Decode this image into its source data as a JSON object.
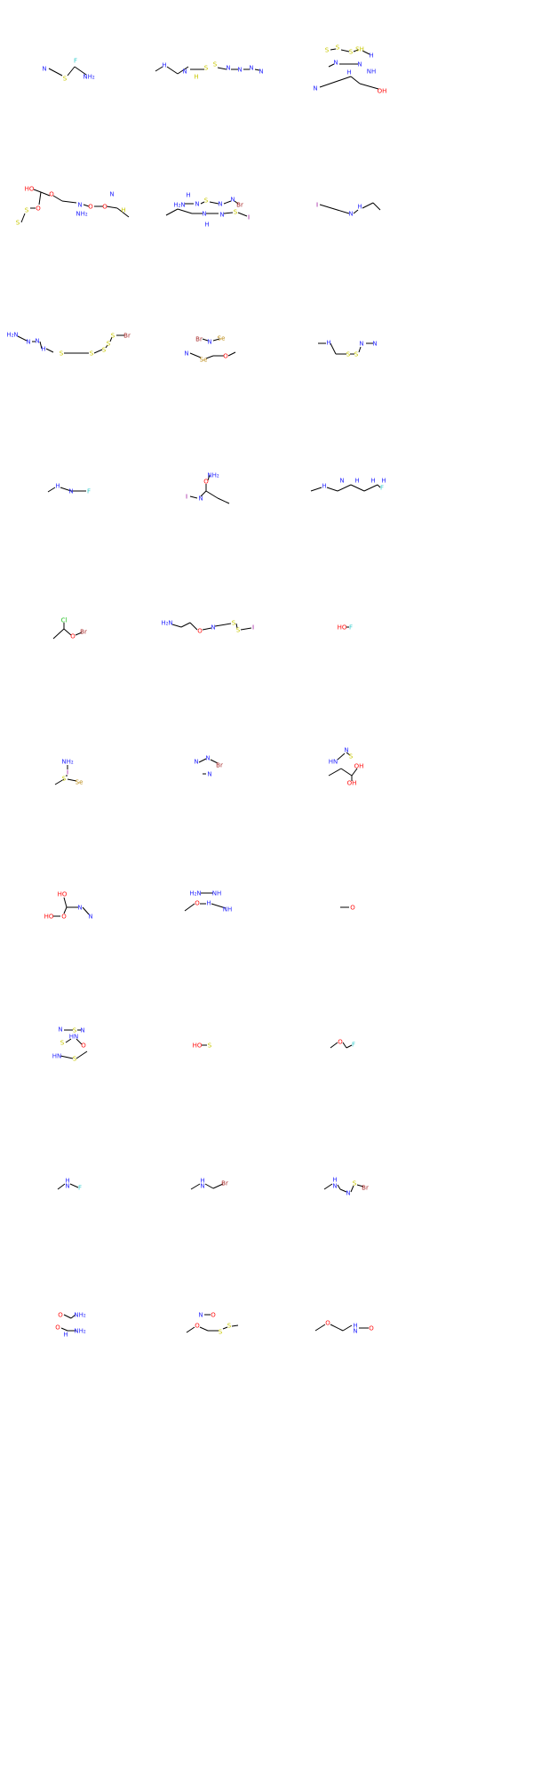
{
  "colors": {
    "bond": "#000000",
    "N": "#2a2aff",
    "O": "#ff0d0d",
    "S": "#c8c800",
    "F": "#33cccc",
    "Cl": "#1fc01f",
    "Br": "#a62929",
    "I": "#940094",
    "Se": "#b8860b",
    "highlight": "#ff8c00"
  },
  "molecules": [
    {
      "labels": [
        [
          "N",
          "N"
        ],
        [
          "S",
          "S"
        ],
        [
          "F",
          "F"
        ],
        [
          "NH₂",
          "N"
        ]
      ]
    },
    {
      "labels": [
        [
          "H",
          "N"
        ],
        [
          "N",
          "N"
        ],
        [
          "S",
          "S"
        ],
        [
          "S",
          "S"
        ],
        [
          "H",
          "S"
        ],
        [
          "N",
          "N"
        ],
        [
          "N",
          "N"
        ],
        [
          "N",
          "N"
        ],
        [
          "N",
          "N"
        ]
      ]
    },
    {
      "labels": [
        [
          "S",
          "S"
        ],
        [
          "S",
          "S"
        ],
        [
          "S",
          "S"
        ],
        [
          "SH",
          "S"
        ],
        [
          "H",
          "N"
        ],
        [
          "N",
          "N"
        ],
        [
          "N",
          "N"
        ],
        [
          "H",
          "N"
        ],
        [
          "NH",
          "N"
        ],
        [
          "N",
          "N"
        ],
        [
          "OH",
          "O"
        ]
      ]
    },
    {
      "labels": [
        [
          "HO",
          "O"
        ],
        [
          "O",
          "O"
        ],
        [
          "S",
          "S"
        ],
        [
          "S",
          "S"
        ],
        [
          "N",
          "N"
        ],
        [
          "NH₂",
          "N"
        ],
        [
          "O",
          "O"
        ],
        [
          "O",
          "O"
        ],
        [
          "N",
          "N"
        ],
        [
          "H",
          "S"
        ],
        [
          "O",
          "O"
        ]
      ]
    },
    {
      "labels": [
        [
          "H",
          "N"
        ],
        [
          "H₂N",
          "N"
        ],
        [
          "N",
          "N"
        ],
        [
          "S",
          "S"
        ],
        [
          "N",
          "N"
        ],
        [
          "N",
          "N"
        ],
        [
          "Br",
          "Br"
        ],
        [
          "N",
          "N"
        ],
        [
          "H",
          "N"
        ],
        [
          "N",
          "N"
        ],
        [
          "S",
          "S"
        ],
        [
          "I",
          "I"
        ]
      ]
    },
    {
      "labels": [
        [
          "I",
          "I"
        ],
        [
          "N",
          "N"
        ],
        [
          "H",
          "N"
        ]
      ]
    },
    {
      "labels": [
        [
          "H₂N",
          "N"
        ],
        [
          "N",
          "N"
        ],
        [
          "N",
          "N"
        ],
        [
          "H",
          "N"
        ],
        [
          "S",
          "S"
        ],
        [
          "S",
          "S"
        ],
        [
          "S",
          "S"
        ],
        [
          "S",
          "S"
        ],
        [
          "S",
          "S"
        ],
        [
          "Br",
          "Br"
        ]
      ]
    },
    {
      "labels": [
        [
          "Br",
          "Br"
        ],
        [
          "N",
          "N"
        ],
        [
          "Se",
          "Se"
        ],
        [
          "N",
          "N"
        ],
        [
          "Se",
          "Se"
        ],
        [
          "O",
          "O"
        ]
      ]
    },
    {
      "labels": [
        [
          "H",
          "N"
        ],
        [
          "N",
          "N"
        ],
        [
          "N",
          "N"
        ],
        [
          "S",
          "S"
        ],
        [
          "S",
          "S"
        ]
      ]
    },
    {
      "labels": [
        [
          "H",
          "N"
        ],
        [
          "N",
          "N"
        ],
        [
          "F",
          "F"
        ]
      ]
    },
    {
      "labels": [
        [
          "NH₂",
          "N"
        ],
        [
          "O",
          "O"
        ],
        [
          "I",
          "I"
        ],
        [
          "N",
          "N"
        ]
      ]
    },
    {
      "labels": [
        [
          "H",
          "N"
        ],
        [
          "N",
          "N"
        ],
        [
          "H",
          "N"
        ],
        [
          "H",
          "N"
        ],
        [
          "H",
          "N"
        ],
        [
          "F",
          "F"
        ]
      ]
    },
    {
      "labels": [
        [
          "Cl",
          "Cl"
        ],
        [
          "O",
          "O"
        ],
        [
          "Br",
          "Br"
        ]
      ]
    },
    {
      "labels": [
        [
          "H₂N",
          "N"
        ],
        [
          "O",
          "O"
        ],
        [
          "N",
          "N"
        ],
        [
          "S",
          "S"
        ],
        [
          "S",
          "S"
        ],
        [
          "I",
          "I"
        ]
      ]
    },
    {
      "labels": [
        [
          "HO",
          "O"
        ],
        [
          "F",
          "F"
        ]
      ]
    },
    {
      "labels": [
        [
          "NH₂",
          "N"
        ],
        [
          "I",
          "I"
        ],
        [
          "S",
          "S"
        ],
        [
          "Se",
          "Se"
        ]
      ]
    },
    {
      "labels": [
        [
          "N",
          "N"
        ],
        [
          "N",
          "N"
        ],
        [
          "Br",
          "Br"
        ],
        [
          "N",
          "N"
        ]
      ]
    },
    {
      "labels": [
        [
          "N",
          "N"
        ],
        [
          "S",
          "S"
        ],
        [
          "HN",
          "N"
        ],
        [
          "OH",
          "O"
        ],
        [
          "OH",
          "O"
        ]
      ]
    },
    {
      "labels": [
        [
          "HO",
          "O"
        ],
        [
          "HO",
          "O"
        ],
        [
          "O",
          "O"
        ],
        [
          "N",
          "N"
        ],
        [
          "N",
          "N"
        ]
      ]
    },
    {
      "labels": [
        [
          "H₂N",
          "N"
        ],
        [
          "NH",
          "N"
        ],
        [
          "O",
          "O"
        ],
        [
          "H",
          "N"
        ],
        [
          "NH",
          "N"
        ]
      ]
    },
    {
      "labels": [
        [
          "O",
          "O"
        ]
      ]
    },
    {
      "labels": [
        [
          "N",
          "N"
        ],
        [
          "S",
          "S"
        ],
        [
          "N",
          "N"
        ],
        [
          "HN",
          "N"
        ],
        [
          "S",
          "S"
        ],
        [
          "O",
          "O"
        ],
        [
          "HN",
          "N"
        ],
        [
          "S",
          "S"
        ]
      ]
    },
    {
      "labels": [
        [
          "HO",
          "O"
        ],
        [
          "S",
          "S"
        ]
      ]
    },
    {
      "labels": [
        [
          "O",
          "O"
        ],
        [
          "F",
          "F"
        ]
      ]
    },
    {
      "labels": [
        [
          "H",
          "N"
        ],
        [
          "N",
          "N"
        ],
        [
          "F",
          "F"
        ]
      ]
    },
    {
      "labels": [
        [
          "H",
          "N"
        ],
        [
          "N",
          "N"
        ],
        [
          "Br",
          "Br"
        ]
      ]
    },
    {
      "labels": [
        [
          "H",
          "N"
        ],
        [
          "N",
          "N"
        ],
        [
          "N",
          "N"
        ],
        [
          "S",
          "S"
        ],
        [
          "Br",
          "Br"
        ]
      ]
    },
    {
      "labels": [
        [
          "O",
          "O"
        ],
        [
          "NH₂",
          "N"
        ],
        [
          "O",
          "O"
        ],
        [
          "NH₂",
          "N"
        ],
        [
          "H",
          "N"
        ]
      ]
    },
    {
      "labels": [
        [
          "N",
          "N"
        ],
        [
          "O",
          "O"
        ],
        [
          "O",
          "O"
        ],
        [
          "S",
          "S"
        ],
        [
          "S",
          "S"
        ]
      ]
    },
    {
      "labels": [
        [
          "O",
          "O"
        ],
        [
          "H",
          "N"
        ],
        [
          "N",
          "N"
        ],
        [
          "O",
          "O"
        ]
      ]
    }
  ]
}
